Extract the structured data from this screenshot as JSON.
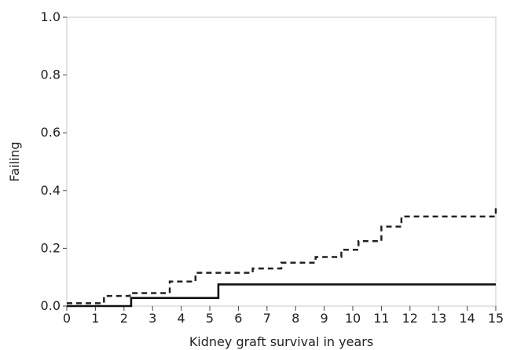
{
  "chart_data": {
    "type": "line",
    "title": "",
    "xlabel": "Kidney graft survival in years",
    "ylabel": "Failing",
    "xlim": [
      0,
      15
    ],
    "ylim": [
      0,
      1
    ],
    "xticks": [
      0,
      1,
      2,
      3,
      4,
      5,
      6,
      7,
      8,
      9,
      10,
      11,
      12,
      13,
      14,
      15
    ],
    "yticks": [
      0.0,
      0.2,
      0.4,
      0.6,
      0.8,
      1.0
    ],
    "ytick_labels": [
      "0.0",
      "0.2",
      "0.4",
      "0.6",
      "0.8",
      "1.0"
    ],
    "grid": false,
    "series": [
      {
        "style": "dashed",
        "color": "#222222",
        "step": true,
        "x": [
          0,
          1.0,
          1.3,
          2.2,
          3.6,
          4.5,
          6.5,
          7.5,
          8.7,
          9.6,
          10.2,
          11.0,
          11.7,
          15.0
        ],
        "y": [
          0.01,
          0.01,
          0.035,
          0.045,
          0.085,
          0.115,
          0.13,
          0.15,
          0.17,
          0.195,
          0.225,
          0.275,
          0.31,
          0.35
        ]
      },
      {
        "style": "solid",
        "color": "#111111",
        "step": true,
        "x": [
          0,
          2.25,
          5.3,
          15.0
        ],
        "y": [
          0.0,
          0.028,
          0.075,
          0.075
        ]
      }
    ]
  }
}
